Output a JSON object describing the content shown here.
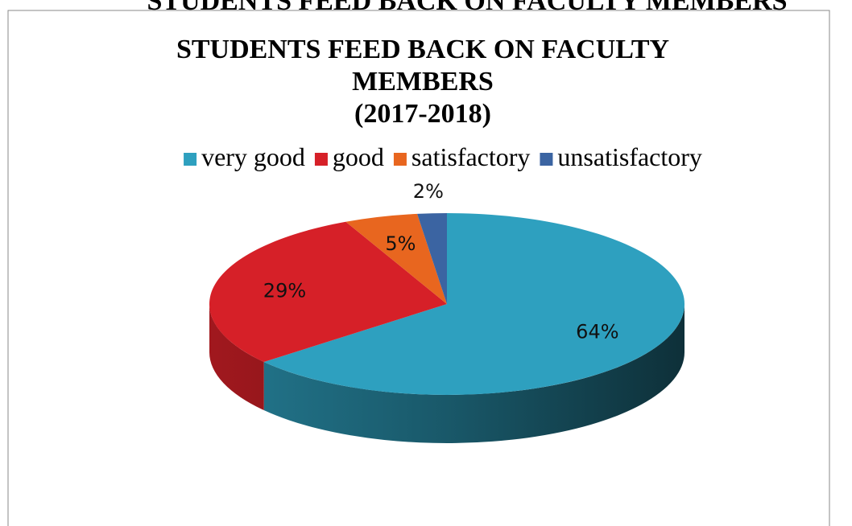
{
  "heading": "STUDENTS FEED BACK ON FACULTY MEMBERS",
  "chart_data": {
    "type": "pie",
    "title": [
      "STUDENTS FEED BACK ON FACULTY",
      "MEMBERS",
      "(2017-2018)"
    ],
    "categories": [
      "very good",
      "good",
      "satisfactory",
      "unsatisfactory"
    ],
    "values": [
      64,
      29,
      5,
      2
    ],
    "value_labels": [
      "64%",
      "29%",
      "5%",
      "2%"
    ],
    "colors": [
      "#2ea0bf",
      "#d62028",
      "#e8661f",
      "#3b64a2"
    ],
    "legend": "top"
  }
}
